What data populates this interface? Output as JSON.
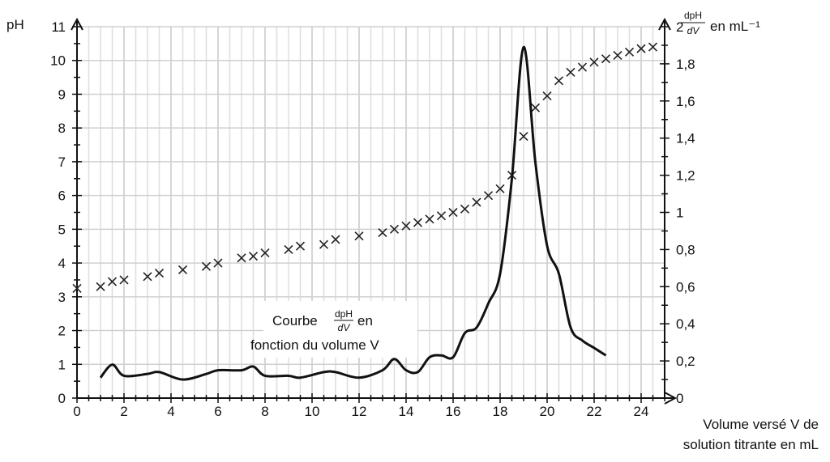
{
  "chart_data": {
    "type": "scatter+line",
    "xlabel_line1": "Volume versé V de",
    "xlabel_line2": "solution titrante en mL",
    "ylabel_left": "pH",
    "ylabel_right_num": "dpH",
    "ylabel_right_den": "dV",
    "ylabel_right_unit": "en mL⁻¹",
    "xlim": [
      0,
      25
    ],
    "ylim_left": [
      0,
      11
    ],
    "ylim_right": [
      0,
      2
    ],
    "grid": true,
    "x_ticks": [
      "0",
      "2",
      "4",
      "6",
      "8",
      "10",
      "12",
      "14",
      "16",
      "18",
      "20",
      "22",
      "24"
    ],
    "y_left_ticks": [
      "0",
      "1",
      "2",
      "3",
      "4",
      "5",
      "6",
      "7",
      "8",
      "9",
      "10",
      "11"
    ],
    "y_right_ticks": [
      "0",
      "0,2",
      "0,4",
      "0,6",
      "0,8",
      "1",
      "1,2",
      "1,4",
      "1,6",
      "1,8",
      "2"
    ],
    "annotation": {
      "line1_pre": "Courbe",
      "frac_num": "dpH",
      "frac_den": "dV",
      "line1_post": "en",
      "line2": "fonction du volume V"
    },
    "series": [
      {
        "name": "pH",
        "marker": "x",
        "axis": "left",
        "x": [
          0,
          1,
          1.5,
          2,
          3,
          3.5,
          4.5,
          5.5,
          6,
          7,
          7.5,
          8,
          9,
          9.5,
          10.5,
          11,
          12,
          13,
          13.5,
          14,
          14.5,
          15,
          15.5,
          16,
          16.5,
          17,
          17.5,
          18,
          18.5,
          19,
          19.5,
          20,
          20.5,
          21,
          21.5,
          22,
          22.5,
          23,
          23.5,
          24,
          24.5
        ],
        "y": [
          3.25,
          3.3,
          3.45,
          3.5,
          3.6,
          3.7,
          3.8,
          3.9,
          4.0,
          4.15,
          4.2,
          4.3,
          4.4,
          4.5,
          4.55,
          4.7,
          4.8,
          4.9,
          5.0,
          5.1,
          5.2,
          5.3,
          5.4,
          5.5,
          5.6,
          5.8,
          6.0,
          6.2,
          6.6,
          7.75,
          8.6,
          8.95,
          9.4,
          9.65,
          9.8,
          9.95,
          10.05,
          10.15,
          10.25,
          10.35,
          10.4
        ]
      },
      {
        "name": "dpH/dV",
        "marker": "line",
        "axis": "right",
        "x": [
          1,
          1.5,
          2,
          3,
          3.5,
          4.5,
          5.5,
          6,
          7,
          7.5,
          8,
          9,
          9.5,
          10.5,
          11,
          12,
          13,
          13.5,
          14,
          14.5,
          15,
          15.5,
          16,
          16.5,
          17,
          17.5,
          18,
          18.5,
          19,
          19.5,
          20,
          20.5,
          21,
          21.5,
          22,
          22.5
        ],
        "y": [
          0.11,
          0.18,
          0.12,
          0.13,
          0.14,
          0.1,
          0.13,
          0.15,
          0.15,
          0.17,
          0.12,
          0.12,
          0.11,
          0.14,
          0.14,
          0.11,
          0.15,
          0.21,
          0.15,
          0.14,
          0.22,
          0.23,
          0.22,
          0.35,
          0.38,
          0.51,
          0.67,
          1.18,
          1.89,
          1.27,
          0.82,
          0.67,
          0.38,
          0.31,
          0.27,
          0.23
        ]
      }
    ]
  }
}
